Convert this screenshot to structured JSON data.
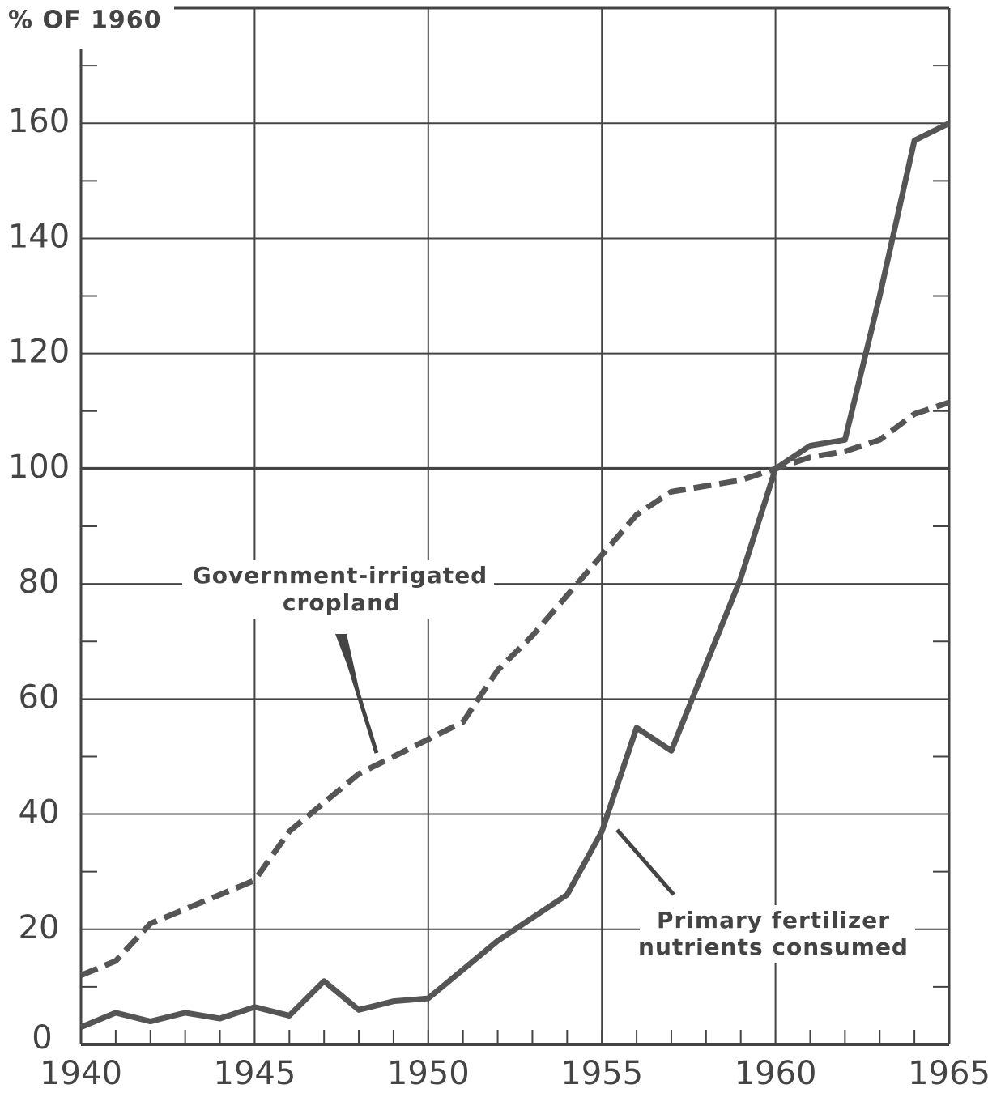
{
  "chart_data": {
    "type": "line",
    "ylabel": "% OF 1960",
    "x": [
      1940,
      1941,
      1942,
      1943,
      1944,
      1945,
      1946,
      1947,
      1948,
      1949,
      1950,
      1951,
      1952,
      1953,
      1954,
      1955,
      1956,
      1957,
      1958,
      1959,
      1960,
      1961,
      1962,
      1963,
      1964,
      1965
    ],
    "series": [
      {
        "name": "Primary fertilizer nutrients consumed",
        "label_lines": [
          "Primary fertilizer",
          "nutrients consumed"
        ],
        "color": "#555555",
        "dash": false,
        "values": [
          3,
          5.5,
          4,
          5.5,
          4.5,
          6.5,
          5,
          11,
          6,
          7.5,
          8,
          13,
          18,
          22,
          26,
          37,
          55,
          51,
          66,
          81,
          100,
          104,
          105,
          130,
          157,
          160
        ]
      },
      {
        "name": "Government-irrigated cropland",
        "label_lines": [
          "Government-irrigated",
          "cropland"
        ],
        "color": "#555555",
        "dash": true,
        "values": [
          12,
          14.5,
          21,
          23.5,
          26,
          28.5,
          37,
          42,
          47,
          50,
          53,
          56,
          65,
          71,
          78,
          85,
          92,
          96,
          97,
          98,
          100,
          102,
          103,
          105,
          109.5,
          111.5
        ]
      }
    ],
    "xlim": [
      1940,
      1965
    ],
    "xticks": [
      1940,
      1945,
      1950,
      1955,
      1960,
      1965
    ],
    "ylim": [
      0,
      180
    ],
    "yticks": [
      0,
      20,
      40,
      60,
      80,
      100,
      120,
      140,
      160
    ],
    "yminorticks": [
      10,
      30,
      50,
      70,
      90,
      110,
      130,
      150,
      170
    ],
    "grid": true
  }
}
